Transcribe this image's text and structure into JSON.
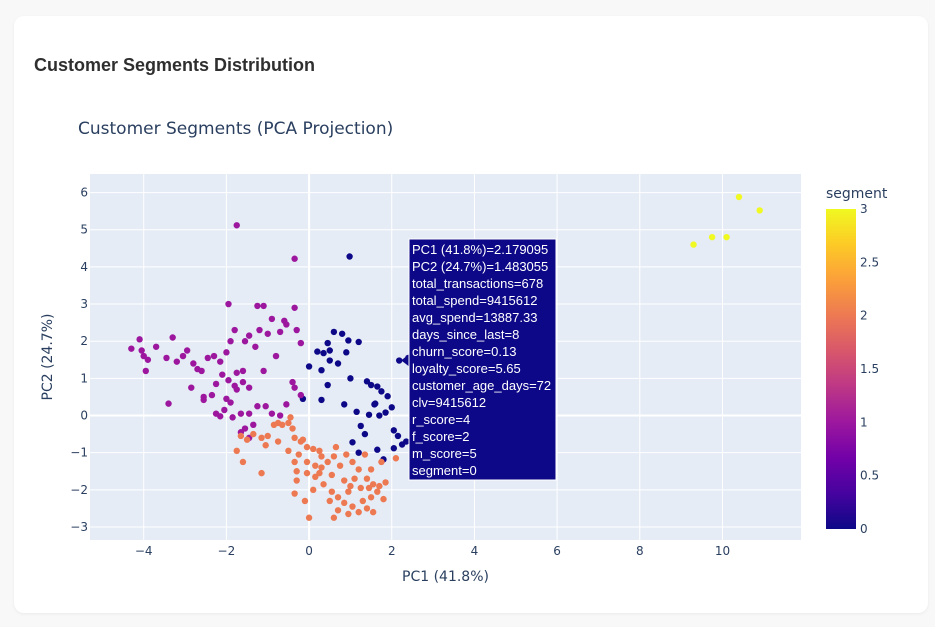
{
  "page": {
    "heading": "Customer Segments Distribution"
  },
  "colors": {
    "plot_bg": "#e5ecf6",
    "grid": "#ffffff",
    "text": "#2a3f5f",
    "hover_bg": "#0d0887",
    "colorscale": [
      "#0d0887",
      "#46039f",
      "#7201a8",
      "#9c179e",
      "#bd3786",
      "#d8576b",
      "#ed7953",
      "#fb9f3a",
      "#fdca26",
      "#f0f921"
    ]
  },
  "chart_data": {
    "type": "scatter",
    "title": "Customer Segments (PCA Projection)",
    "xlabel": "PC1 (41.8%)",
    "ylabel": "PC2 (24.7%)",
    "xlim": [
      -5.3,
      11.9
    ],
    "ylim": [
      -3.35,
      6.5
    ],
    "xticks": [
      -4,
      -2,
      0,
      2,
      4,
      6,
      8,
      10
    ],
    "yticks": [
      -3,
      -2,
      -1,
      0,
      1,
      2,
      3,
      4,
      5,
      6
    ],
    "grid": true,
    "colorbar": {
      "title": "segment",
      "range": [
        0,
        3
      ],
      "ticks": [
        0,
        0.5,
        1,
        1.5,
        2,
        2.5,
        3
      ]
    },
    "series": [
      {
        "segment": 0,
        "points": [
          [
            0.0,
            1.32
          ],
          [
            0.2,
            1.72
          ],
          [
            0.35,
            1.68
          ],
          [
            0.5,
            1.75
          ],
          [
            0.3,
            1.22
          ],
          [
            0.5,
            1.48
          ],
          [
            0.7,
            1.4
          ],
          [
            0.45,
            1.95
          ],
          [
            0.6,
            2.25
          ],
          [
            0.8,
            2.2
          ],
          [
            0.95,
            2.02
          ],
          [
            0.98,
            4.28
          ],
          [
            1.2,
            1.98
          ],
          [
            1.0,
            1.0
          ],
          [
            1.4,
            0.92
          ],
          [
            1.5,
            0.82
          ],
          [
            1.65,
            0.78
          ],
          [
            1.75,
            0.65
          ],
          [
            1.9,
            0.52
          ],
          [
            2.0,
            0.22
          ],
          [
            1.85,
            0.08
          ],
          [
            1.6,
            0.32
          ],
          [
            1.45,
            0.02
          ],
          [
            1.15,
            0.1
          ],
          [
            1.25,
            -0.28
          ],
          [
            1.35,
            -0.5
          ],
          [
            1.05,
            -0.72
          ],
          [
            1.2,
            -1.0
          ],
          [
            1.65,
            -0.92
          ],
          [
            1.8,
            -1.18
          ],
          [
            2.05,
            -0.88
          ],
          [
            2.15,
            -0.55
          ],
          [
            2.05,
            -0.4
          ],
          [
            2.25,
            -0.78
          ],
          [
            2.35,
            -0.7
          ],
          [
            0.3,
            0.42
          ],
          [
            0.45,
            0.82
          ],
          [
            -0.15,
            0.45
          ],
          [
            0.85,
            0.3
          ],
          [
            2.18,
            1.48
          ],
          [
            2.4,
            1.55
          ],
          [
            1.58,
            0.3
          ],
          [
            1.7,
            0.0
          ],
          [
            0.9,
            1.7
          ]
        ]
      },
      {
        "segment": 1,
        "points": [
          [
            -4.3,
            1.8
          ],
          [
            -4.1,
            2.05
          ],
          [
            -4.0,
            1.6
          ],
          [
            -3.9,
            1.5
          ],
          [
            -4.05,
            1.75
          ],
          [
            -3.95,
            1.2
          ],
          [
            -3.7,
            1.85
          ],
          [
            -3.45,
            1.55
          ],
          [
            -3.3,
            2.1
          ],
          [
            -3.2,
            1.45
          ],
          [
            -3.05,
            1.6
          ],
          [
            -2.95,
            1.75
          ],
          [
            -2.8,
            1.4
          ],
          [
            -2.7,
            1.25
          ],
          [
            -2.45,
            1.55
          ],
          [
            -2.3,
            1.6
          ],
          [
            -2.15,
            1.45
          ],
          [
            -2.0,
            1.7
          ],
          [
            -1.9,
            2.0
          ],
          [
            -1.95,
            3.0
          ],
          [
            -1.8,
            2.3
          ],
          [
            -1.55,
            2.0
          ],
          [
            -1.45,
            2.15
          ],
          [
            -1.2,
            2.3
          ],
          [
            -1.25,
            2.95
          ],
          [
            -1.1,
            2.95
          ],
          [
            -1.0,
            2.2
          ],
          [
            -0.9,
            2.6
          ],
          [
            -0.7,
            2.25
          ],
          [
            -0.6,
            2.55
          ],
          [
            -0.55,
            2.45
          ],
          [
            -0.35,
            2.9
          ],
          [
            -0.3,
            2.3
          ],
          [
            -0.2,
            1.95
          ],
          [
            -2.85,
            0.75
          ],
          [
            -3.4,
            0.32
          ],
          [
            -2.55,
            0.5
          ],
          [
            -2.35,
            0.55
          ],
          [
            -2.25,
            0.85
          ],
          [
            -2.1,
            1.1
          ],
          [
            -1.95,
            0.95
          ],
          [
            -1.75,
            1.15
          ],
          [
            -1.6,
            1.2
          ],
          [
            -1.75,
            0.7
          ],
          [
            -1.9,
            0.35
          ],
          [
            -2.05,
            0.15
          ],
          [
            -2.25,
            0.05
          ],
          [
            -2.55,
            0.42
          ],
          [
            -2.15,
            -0.02
          ],
          [
            -1.8,
            0.8
          ],
          [
            -1.65,
            0.05
          ],
          [
            -1.45,
            0.05
          ],
          [
            -1.25,
            0.25
          ],
          [
            -1.05,
            0.25
          ],
          [
            -0.9,
            0.05
          ],
          [
            -0.7,
            0.0
          ],
          [
            -0.55,
            0.3
          ],
          [
            -0.35,
            0.75
          ],
          [
            -0.2,
            0.55
          ],
          [
            -0.4,
            0.9
          ],
          [
            -1.1,
            1.2
          ],
          [
            -1.3,
            1.85
          ],
          [
            -0.8,
            1.6
          ],
          [
            -1.6,
            0.9
          ],
          [
            -1.45,
            0.75
          ],
          [
            -2.6,
            1.2
          ],
          [
            -2.0,
            0.45
          ],
          [
            -0.35,
            4.22
          ],
          [
            -1.75,
            5.12
          ],
          [
            -1.85,
            -0.05
          ],
          [
            -1.65,
            -0.45
          ],
          [
            -1.45,
            -0.6
          ],
          [
            -1.55,
            -0.35
          ],
          [
            -1.35,
            -0.25
          ]
        ]
      },
      {
        "segment": 2,
        "points": [
          [
            -1.65,
            -0.55
          ],
          [
            -1.5,
            -0.65
          ],
          [
            -1.35,
            -0.5
          ],
          [
            -1.15,
            -0.6
          ],
          [
            -1.0,
            -0.55
          ],
          [
            -0.85,
            -0.25
          ],
          [
            -0.75,
            -0.2
          ],
          [
            -0.65,
            -0.25
          ],
          [
            -0.45,
            -0.05
          ],
          [
            -0.4,
            -0.35
          ],
          [
            -0.35,
            -0.6
          ],
          [
            -0.2,
            -0.7
          ],
          [
            -0.05,
            -0.85
          ],
          [
            0.1,
            -0.9
          ],
          [
            0.25,
            -0.95
          ],
          [
            -0.25,
            -1.05
          ],
          [
            -0.05,
            -1.25
          ],
          [
            0.15,
            -1.35
          ],
          [
            0.3,
            -1.4
          ],
          [
            0.45,
            -1.25
          ],
          [
            0.6,
            -1.1
          ],
          [
            0.75,
            -1.35
          ],
          [
            0.9,
            -1.05
          ],
          [
            1.05,
            -1.25
          ],
          [
            1.2,
            -1.45
          ],
          [
            1.4,
            -1.7
          ],
          [
            1.55,
            -1.85
          ],
          [
            1.7,
            -1.9
          ],
          [
            1.85,
            -1.8
          ],
          [
            1.65,
            -2.05
          ],
          [
            1.5,
            -2.2
          ],
          [
            1.3,
            -2.3
          ],
          [
            1.05,
            -2.45
          ],
          [
            0.95,
            -2.65
          ],
          [
            0.85,
            -2.35
          ],
          [
            0.7,
            -2.2
          ],
          [
            0.55,
            -2.05
          ],
          [
            0.35,
            -1.85
          ],
          [
            0.15,
            -1.65
          ],
          [
            -0.05,
            -1.55
          ],
          [
            -0.3,
            -1.75
          ],
          [
            -0.35,
            -2.1
          ],
          [
            -0.1,
            -2.3
          ],
          [
            0.0,
            -2.75
          ],
          [
            0.5,
            -2.3
          ],
          [
            0.6,
            -2.75
          ],
          [
            1.2,
            -2.6
          ],
          [
            1.4,
            -2.5
          ],
          [
            1.55,
            -2.6
          ],
          [
            0.3,
            -1.1
          ],
          [
            0.85,
            -1.75
          ],
          [
            1.0,
            -1.9
          ],
          [
            1.1,
            -1.7
          ],
          [
            1.25,
            -1.95
          ],
          [
            -0.5,
            -0.95
          ],
          [
            -0.35,
            -1.25
          ],
          [
            -1.75,
            -0.95
          ],
          [
            -1.6,
            -1.25
          ],
          [
            -1.15,
            -1.55
          ],
          [
            -1.05,
            -0.8
          ],
          [
            -0.75,
            -0.7
          ],
          [
            -0.3,
            -1.5
          ],
          [
            0.25,
            -1.55
          ],
          [
            0.55,
            -1.6
          ],
          [
            0.95,
            -2.05
          ],
          [
            1.35,
            -1.05
          ],
          [
            1.75,
            -1.25
          ],
          [
            2.1,
            -1.15
          ],
          [
            1.45,
            -1.95
          ],
          [
            1.8,
            -2.25
          ],
          [
            0.1,
            -2.0
          ],
          [
            0.7,
            -2.55
          ],
          [
            -0.15,
            -0.65
          ],
          [
            -0.5,
            -0.2
          ],
          [
            1.5,
            -1.45
          ],
          [
            0.65,
            -0.85
          ]
        ]
      },
      {
        "segment": 3,
        "points": [
          [
            9.3,
            4.6
          ],
          [
            9.75,
            4.8
          ],
          [
            10.1,
            4.8
          ],
          [
            10.4,
            5.88
          ],
          [
            10.9,
            5.52
          ]
        ]
      }
    ],
    "hover": {
      "point": [
        2.179095,
        1.483055
      ],
      "lines": [
        "PC1 (41.8%)=2.179095",
        "PC2 (24.7%)=1.483055",
        "total_transactions=678",
        "total_spend=9415612",
        "avg_spend=13887.33",
        "days_since_last=8",
        "churn_score=0.13",
        "loyalty_score=5.65",
        "customer_age_days=72",
        "clv=9415612",
        "r_score=4",
        "f_score=2",
        "m_score=5",
        "segment=0"
      ]
    }
  }
}
